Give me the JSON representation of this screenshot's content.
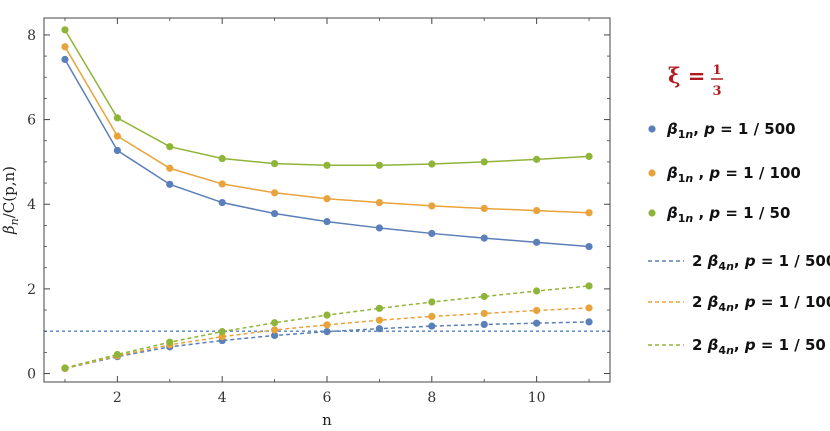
{
  "chart_data": {
    "type": "line",
    "xlabel": "n",
    "ylabel": "β_n/C(p,n)",
    "x_ticks": [
      "2",
      "4",
      "6",
      "8",
      "10"
    ],
    "y_ticks": [
      "0",
      "2",
      "4",
      "6",
      "8"
    ],
    "xlim": [
      0.6,
      11.4
    ],
    "ylim": [
      -0.2,
      8.4
    ],
    "grid": false,
    "legend_position": "right",
    "annotation": {
      "lhs": "ξ =",
      "num": "1",
      "den": "3"
    },
    "x": [
      1,
      2,
      3,
      4,
      5,
      6,
      7,
      8,
      9,
      10,
      11
    ],
    "reference_line": {
      "y": 1,
      "color": "#5b7fb8",
      "style": "dashed"
    },
    "series": [
      {
        "name": "β1n, p = 1/500",
        "color": "#5b7fb8",
        "style": "solid",
        "values": [
          7.42,
          5.27,
          4.47,
          4.04,
          3.78,
          3.59,
          3.44,
          3.31,
          3.2,
          3.1,
          3.0
        ]
      },
      {
        "name": "β1n , p = 1/100",
        "color": "#e8a33c",
        "style": "solid",
        "values": [
          7.72,
          5.61,
          4.85,
          4.48,
          4.27,
          4.13,
          4.04,
          3.96,
          3.9,
          3.85,
          3.8
        ]
      },
      {
        "name": "β1n , p = 1/50",
        "color": "#8fb43a",
        "style": "solid",
        "values": [
          8.12,
          6.04,
          5.36,
          5.08,
          4.96,
          4.92,
          4.92,
          4.95,
          5.0,
          5.06,
          5.13
        ]
      },
      {
        "name": "2 β4n, p = 1/500",
        "color": "#5b7fb8",
        "style": "dashed",
        "values": [
          0.12,
          0.4,
          0.63,
          0.78,
          0.9,
          0.99,
          1.06,
          1.12,
          1.16,
          1.19,
          1.22
        ]
      },
      {
        "name": "2 β4n, p = 1/100",
        "color": "#e8a33c",
        "style": "dashed",
        "values": [
          0.12,
          0.42,
          0.68,
          0.87,
          1.03,
          1.15,
          1.26,
          1.35,
          1.42,
          1.49,
          1.55
        ]
      },
      {
        "name": "2 β4n, p = 1/50",
        "color": "#8fb43a",
        "style": "dashed",
        "values": [
          0.13,
          0.45,
          0.74,
          0.99,
          1.2,
          1.38,
          1.54,
          1.69,
          1.82,
          1.95,
          2.07
        ]
      }
    ],
    "legend_items": [
      {
        "coef": "",
        "sub": "1",
        "subn": "n",
        "pre": ",",
        "p_text": "p = 1 / 500"
      },
      {
        "coef": "",
        "sub": "1",
        "subn": "n",
        "pre": " ,",
        "p_text": "p = 1 / 100"
      },
      {
        "coef": "",
        "sub": "1",
        "subn": "n",
        "pre": " ,",
        "p_text": "p = 1 / 50"
      },
      {
        "coef": "2 ",
        "sub": "4",
        "subn": "n",
        "pre": ",",
        "p_text": "p = 1 / 500"
      },
      {
        "coef": "2 ",
        "sub": "4",
        "subn": "n",
        "pre": ",",
        "p_text": "p = 1 / 100"
      },
      {
        "coef": "2 ",
        "sub": "4",
        "subn": "n",
        "pre": ",",
        "p_text": "p = 1 / 50"
      }
    ]
  }
}
